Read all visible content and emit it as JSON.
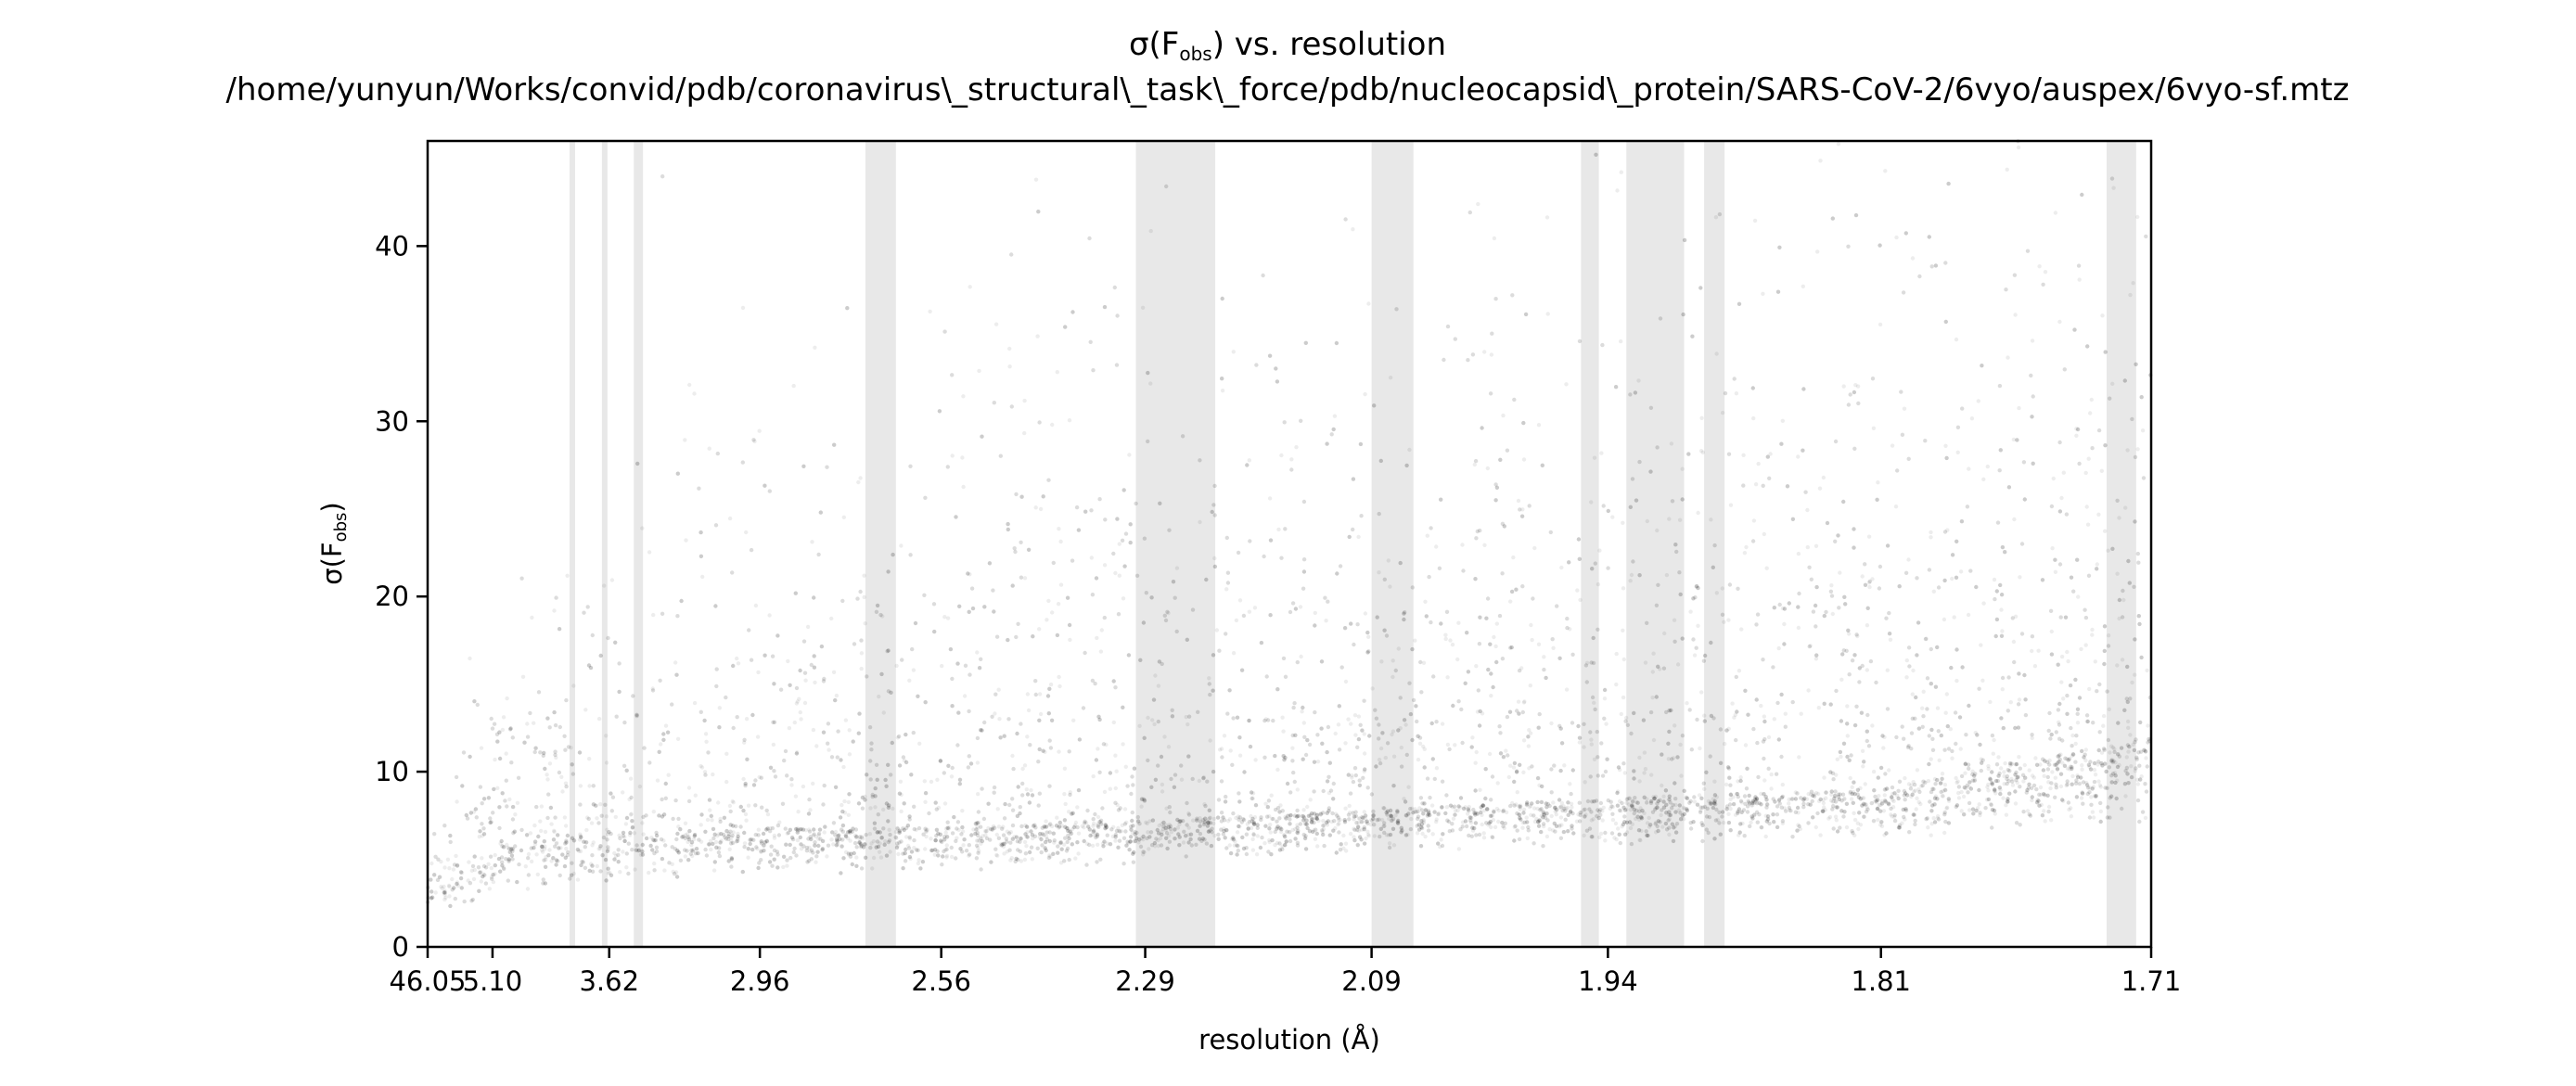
{
  "chart_data": {
    "type": "scatter",
    "title": "σ(F_obs) vs. resolution",
    "title_parts": {
      "pre": "σ(F",
      "sub": "obs",
      "post": ") vs. resolution"
    },
    "subtitle": "/home/yunyun/Works/convid/pdb/coronavirus\\_structural\\_task\\_force/pdb/nucleocapsid\\_protein/SARS-CoV-2/6vyo/auspex/6vyo-sf.mtz",
    "xlabel": "resolution (Å)",
    "ylabel": "σ(F_obs)",
    "ylabel_parts": {
      "pre": "σ(F",
      "sub": "obs",
      "post": ")"
    },
    "xscale": "1/d^3 (resolution shown as d)",
    "ylim": [
      0,
      46
    ],
    "y_ticks": [
      0,
      10,
      20,
      30,
      40
    ],
    "x_tick_labels": [
      "46.05",
      "5.10",
      "3.62",
      "2.96",
      "2.56",
      "2.29",
      "2.09",
      "1.94",
      "1.81",
      "1.71"
    ],
    "x_tick_values": [
      46.05,
      5.1,
      3.62,
      2.96,
      2.56,
      2.29,
      2.09,
      1.94,
      1.81,
      1.71
    ],
    "grid": false,
    "point_color": "#000000",
    "band_color": "#d9d9d9",
    "ice_ring_bands": [
      {
        "d_min": 3.88,
        "d_max": 3.93
      },
      {
        "d_min": 3.64,
        "d_max": 3.67
      },
      {
        "d_min": 3.42,
        "d_max": 3.47
      },
      {
        "d_min": 2.64,
        "d_max": 2.7
      },
      {
        "d_min": 2.22,
        "d_max": 2.3
      },
      {
        "d_min": 2.06,
        "d_max": 2.09
      },
      {
        "d_min": 1.945,
        "d_max": 1.955
      },
      {
        "d_min": 1.9,
        "d_max": 1.93
      },
      {
        "d_min": 1.88,
        "d_max": 1.89
      },
      {
        "d_min": 1.715,
        "d_max": 1.725
      }
    ],
    "trend": {
      "description": "density ridge of sigma(F_obs) vs resolution",
      "d": [
        46.05,
        5.1,
        3.62,
        2.96,
        2.56,
        2.29,
        2.09,
        1.94,
        1.81,
        1.71
      ],
      "median": [
        3.0,
        5.5,
        6.5,
        6.8,
        6.8,
        7.2,
        7.8,
        8.5,
        9.0,
        12.0
      ],
      "p10": [
        2.0,
        3.5,
        4.3,
        4.8,
        5.0,
        5.4,
        6.0,
        6.5,
        7.0,
        8.0
      ],
      "p90": [
        6.0,
        13.0,
        18.0,
        22.0,
        25.0,
        27.0,
        30.0,
        33.0,
        35.0,
        40.0
      ]
    }
  }
}
